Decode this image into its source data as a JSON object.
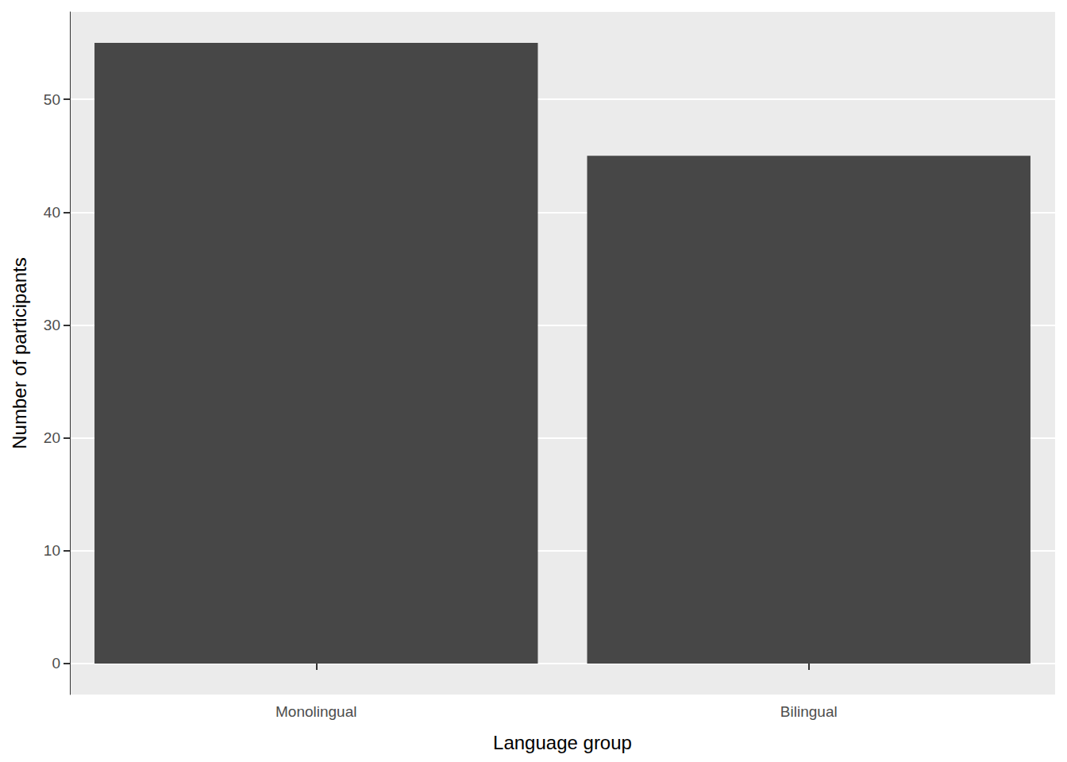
{
  "chart_data": {
    "type": "bar",
    "x_label": "Language group",
    "y_label": "Number of participants",
    "categories": [
      "Monolingual",
      "Bilingual"
    ],
    "values": [
      55,
      45
    ],
    "color": "#474747",
    "ylim": [
      -2.75,
      57.75
    ],
    "yticks": [
      0,
      10,
      20,
      30,
      40,
      50
    ],
    "grid": true
  }
}
